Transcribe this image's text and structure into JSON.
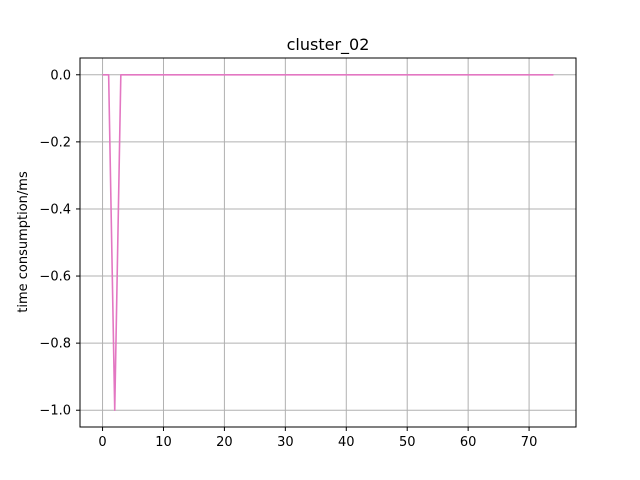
{
  "chart_data": {
    "type": "line",
    "title": "cluster_02",
    "xlabel": "",
    "ylabel": "time consumption/ms",
    "xlim": [
      -3.7,
      77.7
    ],
    "ylim": [
      -1.05,
      0.05
    ],
    "xticks": [
      0,
      10,
      20,
      30,
      40,
      50,
      60,
      70
    ],
    "xtick_labels": [
      "0",
      "10",
      "20",
      "30",
      "40",
      "50",
      "60",
      "70"
    ],
    "yticks": [
      0.0,
      -0.2,
      -0.4,
      -0.6,
      -0.8,
      -1.0
    ],
    "ytick_labels": [
      "0.0",
      "−0.2",
      "−0.4",
      "−0.6",
      "−0.8",
      "−1.0"
    ],
    "grid": true,
    "series": [
      {
        "color": "#e377c2",
        "x": [
          0,
          1,
          2,
          3,
          4,
          5,
          6,
          7,
          8,
          9,
          10,
          11,
          12,
          13,
          14,
          15,
          16,
          17,
          18,
          19,
          20,
          21,
          22,
          23,
          24,
          25,
          26,
          27,
          28,
          29,
          30,
          31,
          32,
          33,
          34,
          35,
          36,
          37,
          38,
          39,
          40,
          41,
          42,
          43,
          44,
          45,
          46,
          47,
          48,
          49,
          50,
          51,
          52,
          53,
          54,
          55,
          56,
          57,
          58,
          59,
          60,
          61,
          62,
          63,
          64,
          65,
          66,
          67,
          68,
          69,
          70,
          71,
          72,
          73,
          74
        ],
        "y": [
          0,
          0,
          -1,
          0,
          0,
          0,
          0,
          0,
          0,
          0,
          0,
          0,
          0,
          0,
          0,
          0,
          0,
          0,
          0,
          0,
          0,
          0,
          0,
          0,
          0,
          0,
          0,
          0,
          0,
          0,
          0,
          0,
          0,
          0,
          0,
          0,
          0,
          0,
          0,
          0,
          0,
          0,
          0,
          0,
          0,
          0,
          0,
          0,
          0,
          0,
          0,
          0,
          0,
          0,
          0,
          0,
          0,
          0,
          0,
          0,
          0,
          0,
          0,
          0,
          0,
          0,
          0,
          0,
          0,
          0,
          0,
          0,
          0,
          0,
          0
        ]
      }
    ]
  }
}
